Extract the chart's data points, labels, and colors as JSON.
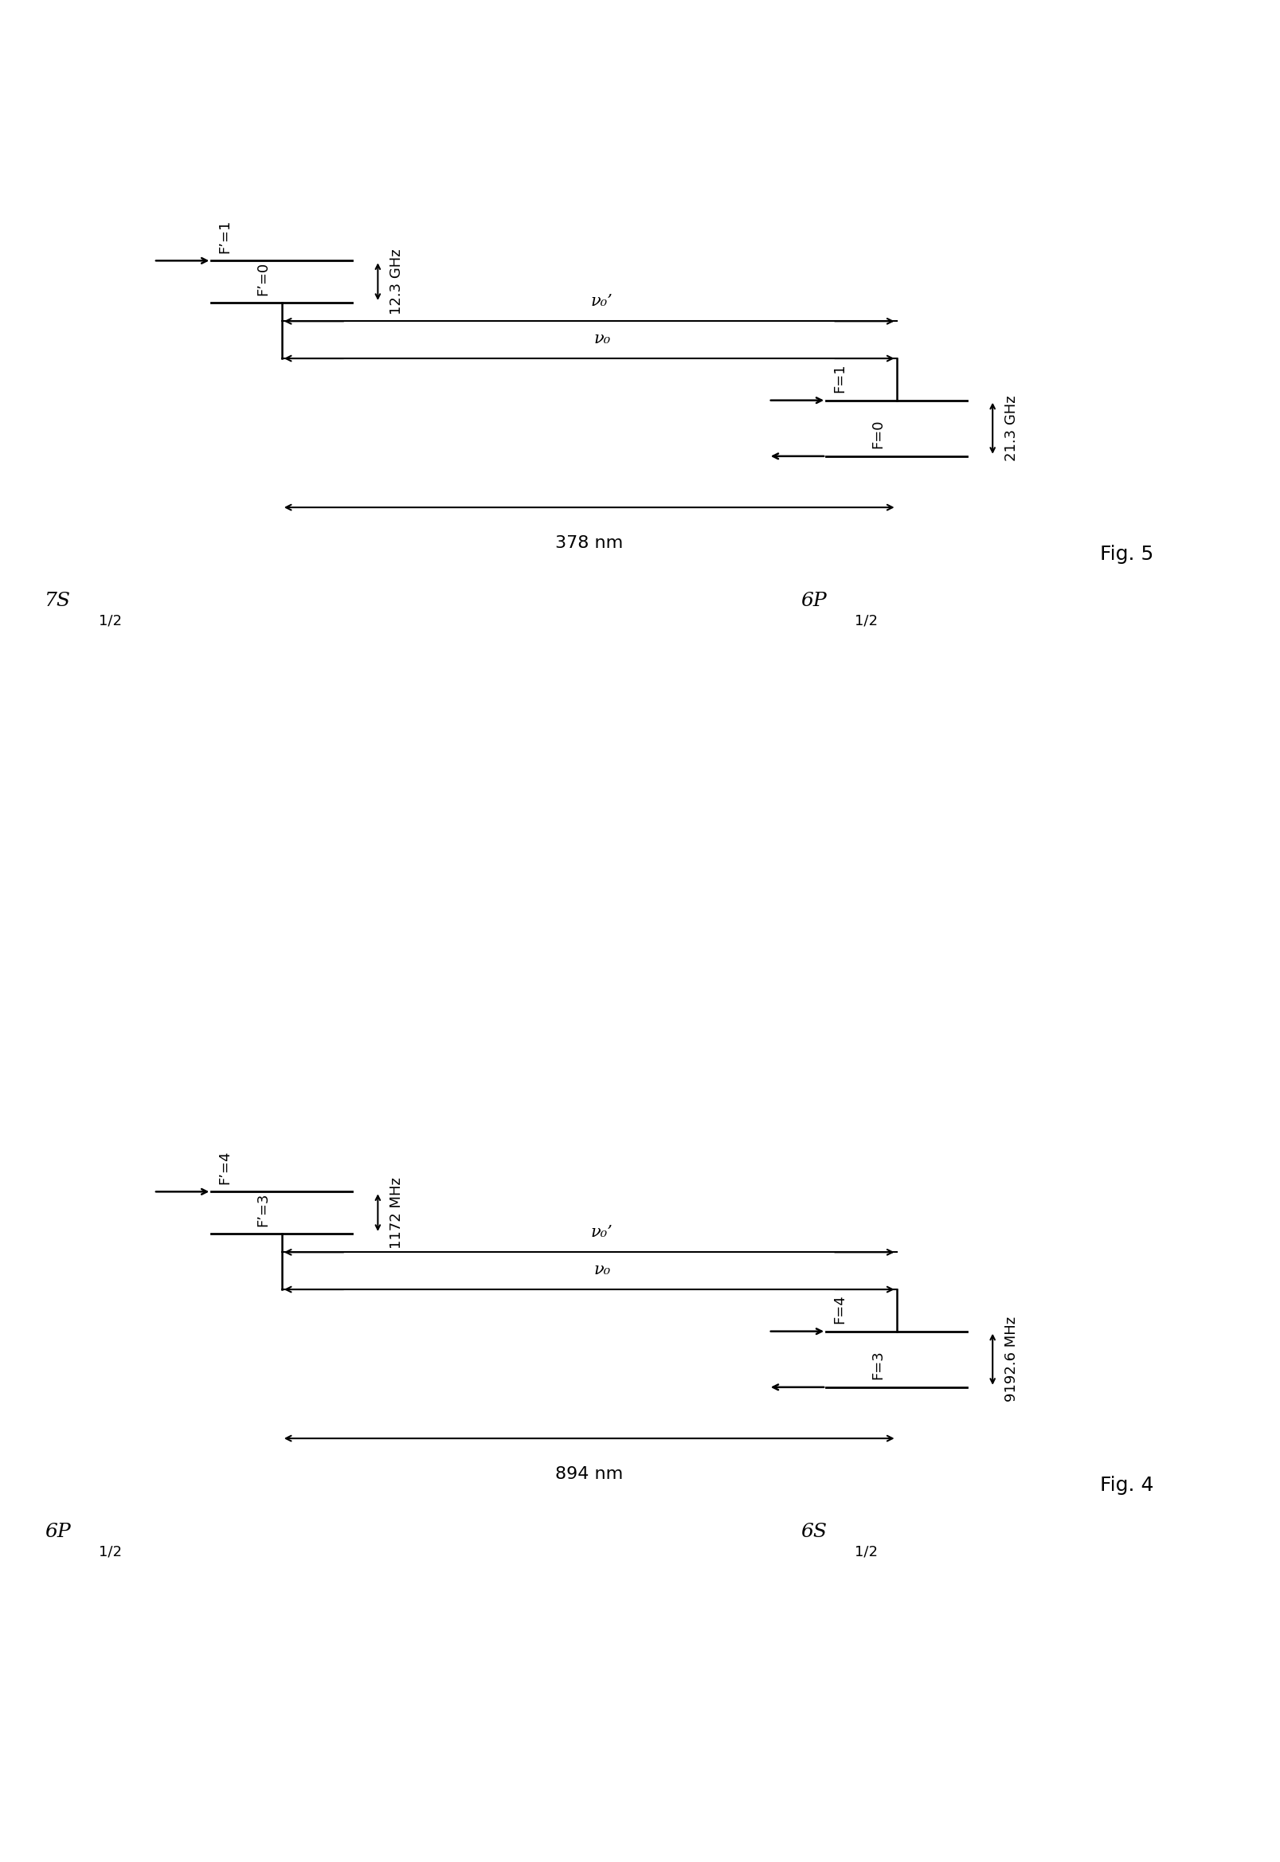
{
  "fig5": {
    "title": "Fig. 5",
    "left_state": "7S",
    "left_sub": "1/2",
    "right_state": "6P",
    "right_sub": "1/2",
    "wavelength": "378 nm",
    "left_levels": [
      "F’=1",
      "F’=0"
    ],
    "right_levels": [
      "F=1",
      "F=0"
    ],
    "left_splitting": "12.3 GHz",
    "right_splitting": "21.3 GHz",
    "nu0_prime_label": "ν₀’",
    "nu0_label": "ν₀"
  },
  "fig4": {
    "title": "Fig. 4",
    "left_state": "6P",
    "left_sub": "1/2",
    "right_state": "6S",
    "right_sub": "1/2",
    "wavelength": "894 nm",
    "left_levels": [
      "F’=4",
      "F’=3"
    ],
    "right_levels": [
      "F=4",
      "F=3"
    ],
    "left_splitting": "1172 MHz",
    "right_splitting": "9192.6 MHz",
    "nu0_prime_label": "ν₀’",
    "nu0_label": "ν₀"
  },
  "line_color": "#000000"
}
